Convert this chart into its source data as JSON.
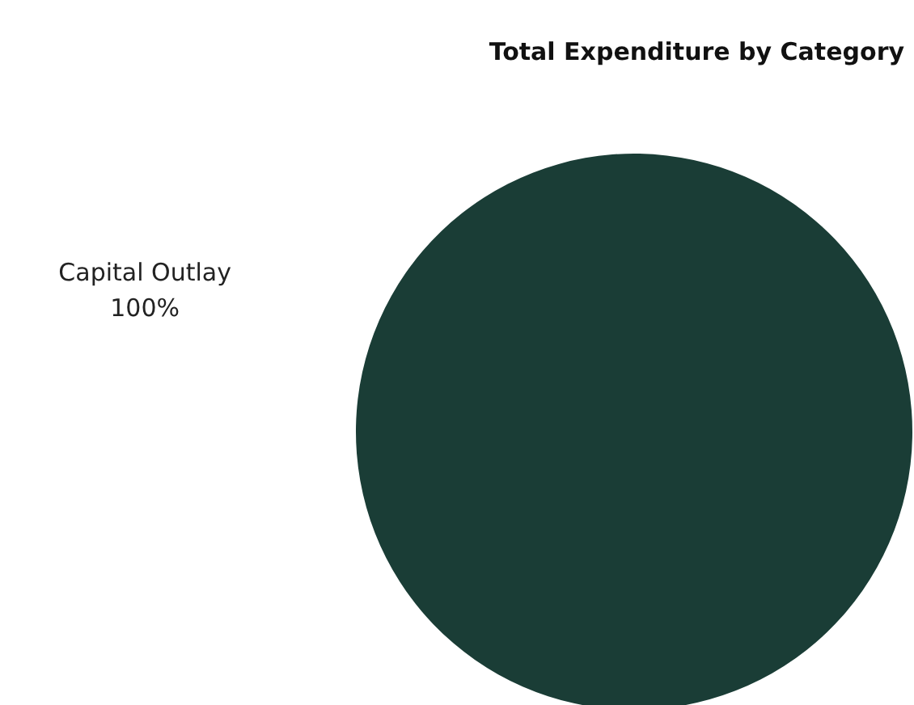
{
  "chart_data": {
    "type": "pie",
    "title": "Total Expenditure by Category",
    "categories": [
      "Capital Outlay"
    ],
    "values": [
      100
    ],
    "colors": [
      "#1a3d36"
    ],
    "value_labels": [
      "100%"
    ]
  }
}
